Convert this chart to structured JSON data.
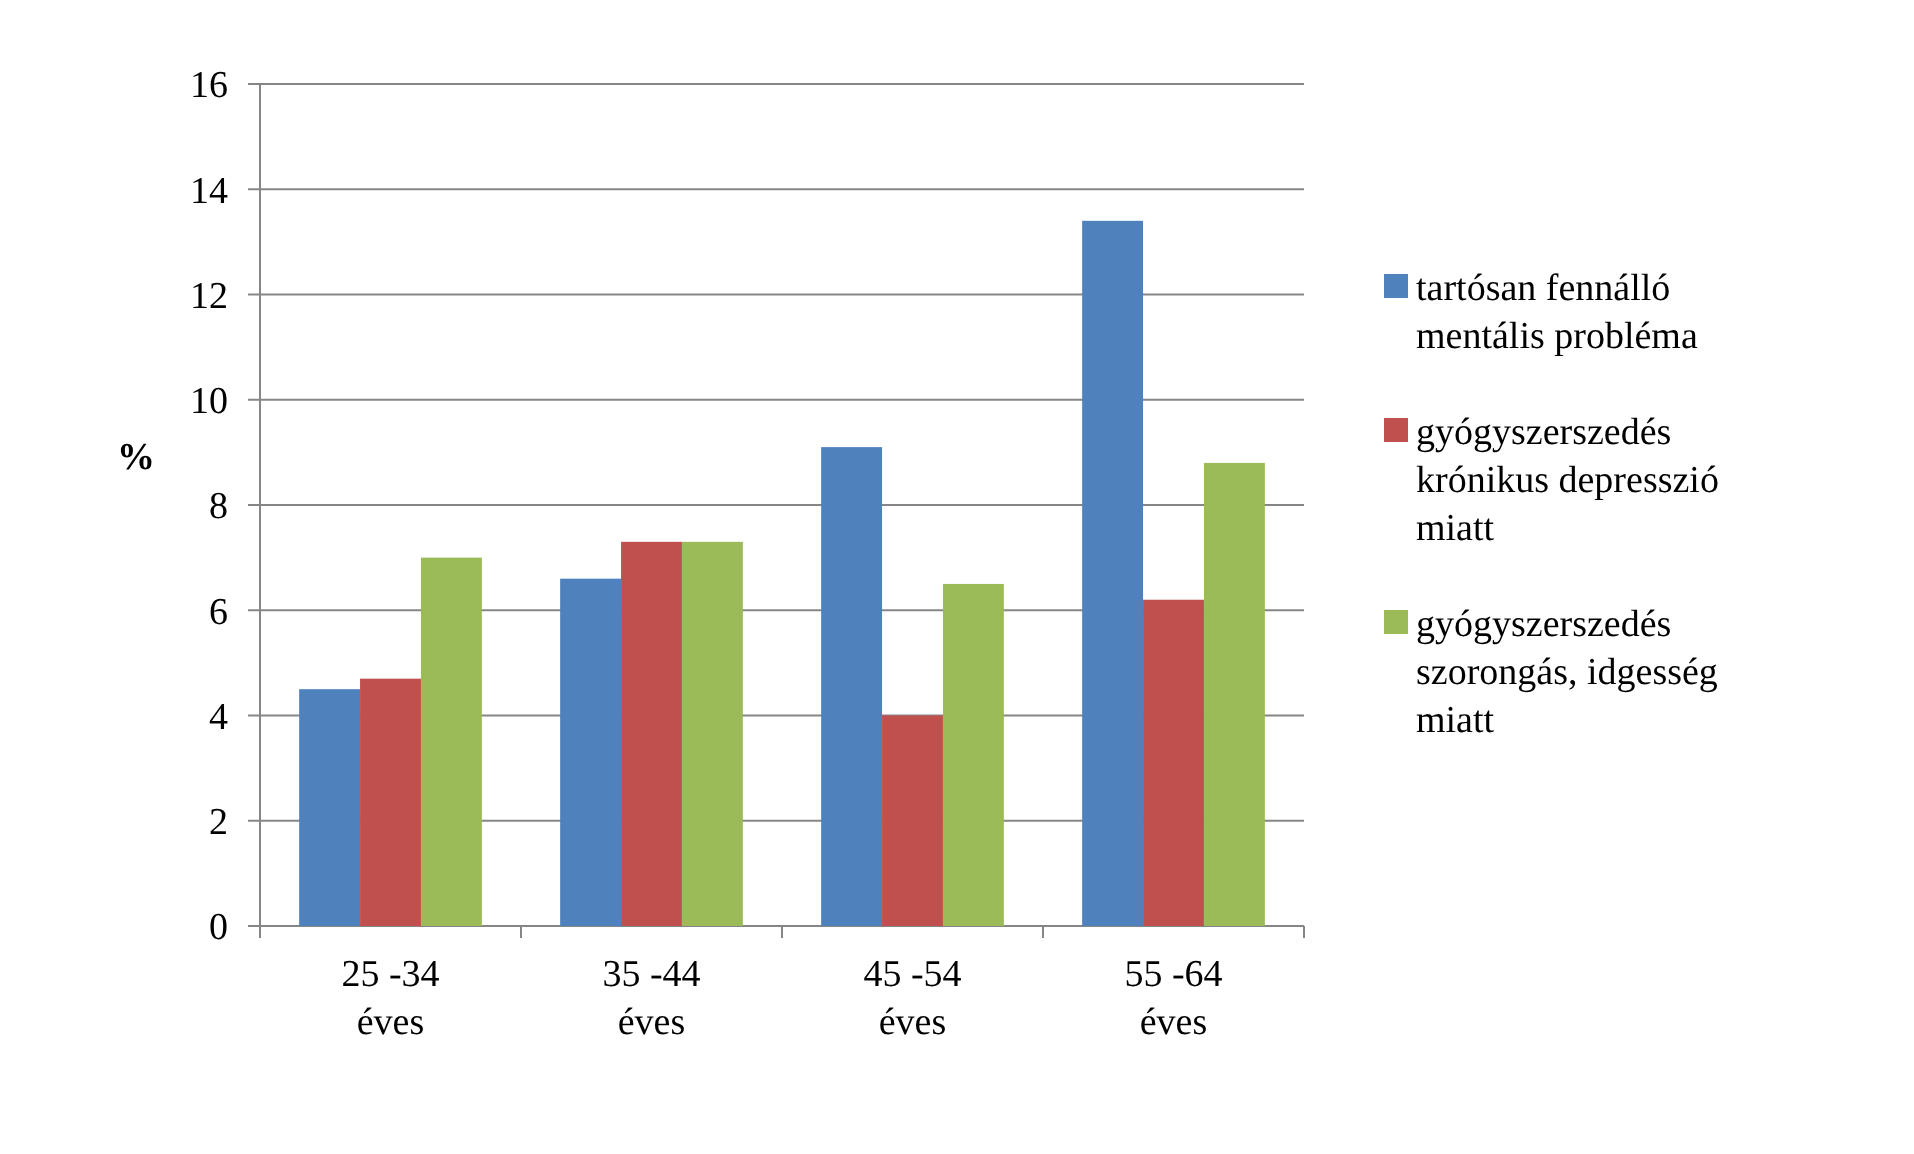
{
  "chart_data": {
    "type": "bar",
    "ylabel": "%",
    "categories": [
      "25 -34\néves",
      "35 -44\néves",
      "45 -54\néves",
      "55 -64\néves"
    ],
    "series": [
      {
        "name": "tartósan fennálló\nmentális probléma",
        "color": "#4f81bd",
        "values": [
          4.5,
          6.6,
          9.1,
          13.4
        ]
      },
      {
        "name": "gyógyszerszedés\nkrónikus depresszió\nmiatt",
        "color": "#c0504d",
        "values": [
          4.7,
          7.3,
          4.0,
          6.2
        ]
      },
      {
        "name": "gyógyszerszedés\nszorongás, idgesség\nmiatt",
        "color": "#9bbb59",
        "values": [
          7.0,
          7.3,
          6.5,
          8.8
        ]
      }
    ],
    "ylim": [
      0,
      16
    ],
    "yticks": [
      0,
      2,
      4,
      6,
      8,
      10,
      12,
      14,
      16
    ],
    "grid": "y",
    "legend": "right"
  }
}
